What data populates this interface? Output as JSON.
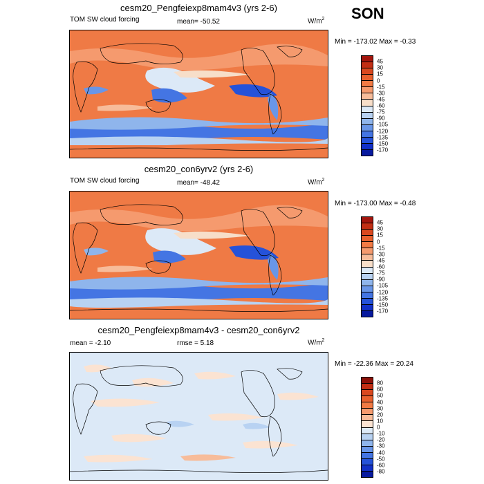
{
  "season": "SON",
  "panels": [
    {
      "title": "cesm20_Pengfeiexp8mam4v3 (yrs 2-6)",
      "variable": "TOM SW cloud forcing",
      "stat": "mean= -50.52",
      "units_base": "W/m",
      "units_exp": "2",
      "minmax": "Min = -173.02 Max =  -0.33",
      "colorbar": {
        "labels": [
          "45",
          "30",
          "15",
          "0",
          "-15",
          "-30",
          "-45",
          "-60",
          "-75",
          "-90",
          "-105",
          "-120",
          "-135",
          "-150",
          "-170"
        ],
        "colors": [
          "#a3150d",
          "#c22e14",
          "#d9481f",
          "#e8602e",
          "#f27a44",
          "#f59a6e",
          "#f7bc9a",
          "#f7dec9",
          "#dce9f7",
          "#b8d2f2",
          "#8fb5ec",
          "#6996e8",
          "#4475e3",
          "#2552d9",
          "#1230c7",
          "#081a9f"
        ]
      }
    },
    {
      "title": "cesm20_con6yrv2 (yrs 2-6)",
      "variable": "TOM SW cloud forcing",
      "stat": "mean= -48.42",
      "units_base": "W/m",
      "units_exp": "2",
      "minmax": "Min = -173.00 Max =  -0.48",
      "colorbar": {
        "labels": [
          "45",
          "30",
          "15",
          "0",
          "-15",
          "-30",
          "-45",
          "-60",
          "-75",
          "-90",
          "-105",
          "-120",
          "-135",
          "-150",
          "-170"
        ],
        "colors": [
          "#a3150d",
          "#c22e14",
          "#d9481f",
          "#e8602e",
          "#f27a44",
          "#f59a6e",
          "#f7bc9a",
          "#f7dec9",
          "#dce9f7",
          "#b8d2f2",
          "#8fb5ec",
          "#6996e8",
          "#4475e3",
          "#2552d9",
          "#1230c7",
          "#081a9f"
        ]
      }
    },
    {
      "title": "cesm20_Pengfeiexp8mam4v3 - cesm20_con6yrv2",
      "variable": "mean =  -2.10",
      "stat": "rmse =   5.18",
      "units_base": "W/m",
      "units_exp": "2",
      "minmax": "Min = -22.36 Max =  20.24",
      "colorbar": {
        "labels": [
          "80",
          "60",
          "50",
          "40",
          "30",
          "20",
          "10",
          "0",
          "-10",
          "-20",
          "-30",
          "-40",
          "-50",
          "-60",
          "-80"
        ],
        "colors": [
          "#8c1008",
          "#c22e14",
          "#d9481f",
          "#e8602e",
          "#f27a44",
          "#f59a6e",
          "#f7bc9a",
          "#fbe3d2",
          "#dce9f7",
          "#b8d2f2",
          "#8fb5ec",
          "#6996e8",
          "#4475e3",
          "#2552d9",
          "#1230c7",
          "#081a9f"
        ]
      }
    }
  ]
}
